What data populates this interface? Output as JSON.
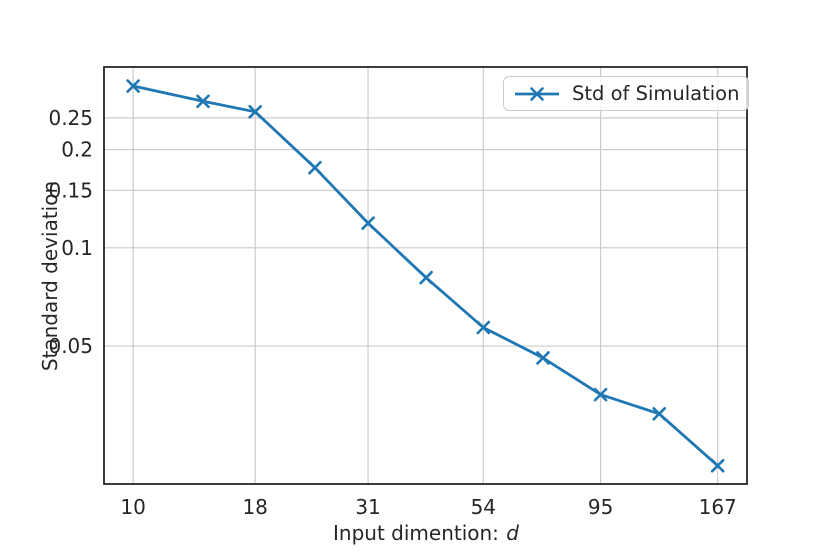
{
  "figure": {
    "background": "#ffffff"
  },
  "chart_data": {
    "type": "line",
    "title": "",
    "xlabel": "Input dimention: ",
    "xlabel_math_var": "d",
    "ylabel": "Standard deviation",
    "x_scale": "log",
    "y_scale": "log",
    "xlim": [
      8.69,
      192.3
    ],
    "ylim": [
      0.0189,
      0.358
    ],
    "grid": true,
    "legend": {
      "label": "Std of Simulation",
      "position": "upper right"
    },
    "x_ticks": [
      {
        "value": 10,
        "label": "10"
      },
      {
        "value": 18,
        "label": "18"
      },
      {
        "value": 31,
        "label": "31"
      },
      {
        "value": 54,
        "label": "54"
      },
      {
        "value": 95,
        "label": "95"
      },
      {
        "value": 167,
        "label": "167"
      }
    ],
    "y_ticks": [
      {
        "value": 0.25,
        "label": "0.25"
      },
      {
        "value": 0.2,
        "label": "0.2"
      },
      {
        "value": 0.15,
        "label": "0.15"
      },
      {
        "value": 0.1,
        "label": "0.1"
      },
      {
        "value": 0.05,
        "label": "0.05"
      }
    ],
    "series": [
      {
        "name": "Std of Simulation",
        "marker": "x",
        "x": [
          10,
          14,
          18,
          24,
          31,
          41,
          54,
          72,
          95,
          126,
          167
        ],
        "y": [
          0.313,
          0.281,
          0.261,
          0.176,
          0.119,
          0.081,
          0.057,
          0.046,
          0.0355,
          0.031,
          0.0215
        ]
      }
    ]
  },
  "style": {
    "line_color": "#1f77b4",
    "grid_color": "#cccccc",
    "spine_color": "#262626",
    "text_color": "#262626",
    "legend_border_color": "#cccccc"
  }
}
